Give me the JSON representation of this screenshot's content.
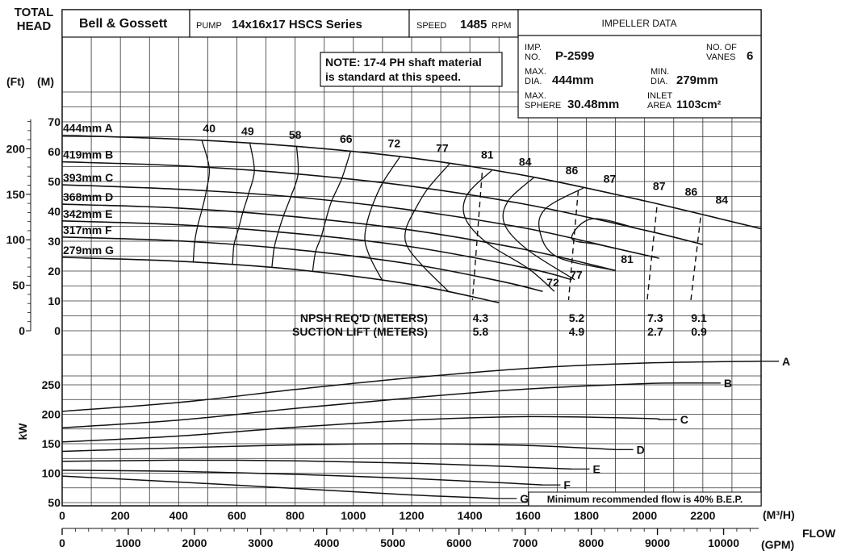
{
  "header": {
    "total_head_1": "TOTAL",
    "total_head_2": "HEAD",
    "unit_ft": "(Ft)",
    "unit_m": "(M)",
    "brand": "Bell & Gossett",
    "pump_label": "PUMP",
    "pump_model": "14x16x17  HSCS Series",
    "speed_label": "SPEED",
    "speed_value": "1485",
    "speed_unit": "RPM"
  },
  "impeller": {
    "title": "IMPELLER DATA",
    "imp_no_label_1": "IMP.",
    "imp_no_label_2": "NO.",
    "imp_no": "P-2599",
    "vanes_label_1": "NO. OF",
    "vanes_label_2": "VANES",
    "vanes": "6",
    "max_dia_label_1": "MAX.",
    "max_dia_label_2": "DIA.",
    "max_dia": "444mm",
    "min_dia_label_1": "MIN.",
    "min_dia_label_2": "DIA.",
    "min_dia": "279mm",
    "max_sphere_label_1": "MAX.",
    "max_sphere_label_2": "SPHERE",
    "max_sphere": "30.48mm",
    "inlet_area_label_1": "INLET",
    "inlet_area_label_2": "AREA",
    "inlet_area": "1103cm²"
  },
  "note": {
    "line1": "NOTE: 17-4 PH shaft material",
    "line2": "is standard at this speed."
  },
  "min_flow_note": "Minimum recommended flow is 40% B.E.P.",
  "npsh": {
    "req_label": "NPSH REQ'D (METERS)",
    "lift_label": "SUCTION LIFT (METERS)"
  },
  "axes": {
    "kw_label": "kW",
    "m3h_unit": "(M³/H)",
    "gpm_unit": "(GPM)",
    "flow_label": "FLOW"
  },
  "chart_data": [
    {
      "type": "line",
      "title": "",
      "xlabel": "FLOW (M³/H)",
      "ylabel": "TOTAL HEAD (M)",
      "xlim": [
        0,
        2400
      ],
      "ylim": [
        0,
        70
      ],
      "x_ticks": [
        0,
        200,
        400,
        600,
        800,
        1000,
        1200,
        1400,
        1600,
        1800,
        2000,
        2200
      ],
      "y_ticks_m": [
        0,
        10,
        20,
        30,
        40,
        50,
        60,
        70
      ],
      "y_ticks_ft": [
        0,
        50,
        100,
        150,
        200
      ],
      "x_secondary_ticks_gpm": [
        0,
        1000,
        2000,
        3000,
        4000,
        5000,
        6000,
        7000,
        8000,
        9000,
        10000
      ],
      "series": [
        {
          "name": "444mm A",
          "x": [
            0,
            400,
            800,
            1200,
            1600,
            2000,
            2400
          ],
          "y": [
            65.5,
            64.2,
            61.8,
            57.9,
            51.8,
            43.5,
            34.2
          ]
        },
        {
          "name": "419mm B",
          "x": [
            0,
            400,
            800,
            1200,
            1600,
            2000,
            2200
          ],
          "y": [
            56.6,
            55.3,
            52.6,
            48.4,
            42.2,
            33.7,
            28.9
          ]
        },
        {
          "name": "393mm C",
          "x": [
            0,
            400,
            800,
            1200,
            1600,
            1900,
            2050
          ],
          "y": [
            48.9,
            47.4,
            44.8,
            40.4,
            34.2,
            27.6,
            24.3
          ]
        },
        {
          "name": "368mm D",
          "x": [
            0,
            400,
            800,
            1200,
            1600,
            1900
          ],
          "y": [
            42.4,
            41.1,
            38.2,
            33.7,
            27.0,
            20.2
          ]
        },
        {
          "name": "342mm E",
          "x": [
            0,
            400,
            800,
            1200,
            1600,
            1750
          ],
          "y": [
            36.8,
            35.5,
            32.6,
            28.1,
            20.9,
            17.1
          ]
        },
        {
          "name": "317mm F",
          "x": [
            0,
            400,
            800,
            1200,
            1500,
            1650
          ],
          "y": [
            31.4,
            30.1,
            27.2,
            22.3,
            16.7,
            13.2
          ]
        },
        {
          "name": "279mm G",
          "x": [
            0,
            400,
            800,
            1200,
            1500
          ],
          "y": [
            24.6,
            23.3,
            20.5,
            15.5,
            9.4
          ]
        }
      ],
      "efficiency_labels": [
        "40",
        "49",
        "58",
        "66",
        "72",
        "77",
        "81",
        "84",
        "86",
        "87",
        "87",
        "86",
        "84",
        "81",
        "77",
        "72"
      ],
      "npsh_points": [
        {
          "flow": 1420,
          "npsh_reqd": "4.3",
          "suction_lift": "5.8"
        },
        {
          "flow": 1750,
          "npsh_reqd": "5.2",
          "suction_lift": "4.9"
        },
        {
          "flow": 2020,
          "npsh_reqd": "7.3",
          "suction_lift": "2.7"
        },
        {
          "flow": 2170,
          "npsh_reqd": "9.1",
          "suction_lift": "0.9"
        }
      ]
    },
    {
      "type": "line",
      "title": "",
      "xlabel": "FLOW (M³/H)",
      "ylabel": "kW",
      "xlim": [
        0,
        2400
      ],
      "ylim": [
        50,
        290
      ],
      "y_ticks": [
        50,
        100,
        150,
        200,
        250
      ],
      "series": [
        {
          "name": "A",
          "x": [
            0,
            400,
            800,
            1200,
            1600,
            2000,
            2400
          ],
          "y": [
            205,
            220,
            242,
            262,
            278,
            287,
            290
          ]
        },
        {
          "name": "B",
          "x": [
            0,
            400,
            800,
            1200,
            1600,
            2000,
            2200
          ],
          "y": [
            177,
            190,
            210,
            228,
            243,
            252,
            253
          ]
        },
        {
          "name": "C",
          "x": [
            0,
            400,
            800,
            1200,
            1600,
            2000,
            2050
          ],
          "y": [
            153,
            163,
            178,
            190,
            196,
            193,
            191
          ]
        },
        {
          "name": "D",
          "x": [
            0,
            400,
            800,
            1200,
            1600,
            1900
          ],
          "y": [
            137,
            143,
            148,
            150,
            147,
            140
          ]
        },
        {
          "name": "E",
          "x": [
            0,
            400,
            800,
            1200,
            1600,
            1750
          ],
          "y": [
            120,
            122,
            121,
            117,
            110,
            107
          ]
        },
        {
          "name": "F",
          "x": [
            0,
            400,
            800,
            1200,
            1500,
            1650
          ],
          "y": [
            105,
            103,
            98,
            91,
            84,
            80
          ]
        },
        {
          "name": "G",
          "x": [
            0,
            400,
            800,
            1200,
            1500
          ],
          "y": [
            95,
            85,
            74,
            63,
            57
          ]
        }
      ]
    }
  ]
}
